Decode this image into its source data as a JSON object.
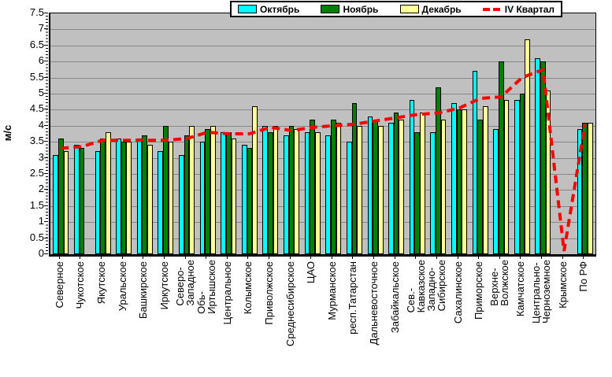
{
  "chart": {
    "legend": {
      "items": [
        {
          "label": "Октябрь",
          "color": "#00ffff",
          "swatch": "box"
        },
        {
          "label": "Ноябрь",
          "color": "#008000",
          "swatch": "box"
        },
        {
          "label": "Декабрь",
          "color": "#ffff99",
          "swatch": "box"
        },
        {
          "label": "IV Квартал",
          "color": "#ff0000",
          "swatch": "dash"
        }
      ]
    },
    "y_axis": {
      "title": "м/с"
    },
    "chart_data": {
      "type": "bar",
      "title": "",
      "xlabel": "",
      "ylabel": "м/с",
      "ylim": [
        0,
        7.5
      ],
      "ytick_step": 0.5,
      "ytick_labels": [
        "0",
        "0.5",
        "1",
        "1.5",
        "2",
        "2.5",
        "3",
        "3.5",
        "4",
        "4.5",
        "5",
        "5.5",
        "6",
        "6.5",
        "7",
        "7.5"
      ],
      "grid": true,
      "plot_background": "#c0c0c0",
      "gridline_color": "#878787",
      "legend_position": "top-center",
      "categories": [
        "Северное",
        "Чукотское",
        "Якутское",
        "Уральское",
        "Башкирское",
        "Иркутское",
        "Северо-\nЗападное",
        "Обь-\nИртышское",
        "Центральное",
        "Колымское",
        "Приволжское",
        "Среднесибирское",
        "ЦАО",
        "Мурманское",
        "респ.Татарстан",
        "Дальневосточное",
        "Забайкальское",
        "Сев.-\nКавказское",
        "Западно-\nСибирское",
        "Сахалинское",
        "Приморское",
        "Верхне-\nВолжское",
        "Камчатское",
        "Центрально-\nЧерноземное",
        "Крымское",
        "По РФ"
      ],
      "series": [
        {
          "name": "Октябрь",
          "type": "bar",
          "color": "#00ffff",
          "values": [
            3.1,
            3.4,
            3.2,
            3.6,
            3.6,
            3.2,
            3.1,
            3.5,
            3.8,
            3.4,
            4.0,
            3.7,
            3.8,
            3.7,
            3.5,
            4.3,
            4.1,
            4.8,
            3.8,
            4.7,
            5.7,
            3.9,
            4.8,
            6.1,
            null,
            3.9
          ]
        },
        {
          "name": "Ноябрь",
          "type": "bar",
          "color": "#008000",
          "values": [
            3.6,
            3.3,
            3.6,
            3.5,
            3.7,
            4.0,
            3.7,
            3.9,
            3.8,
            3.3,
            3.8,
            4.0,
            4.2,
            4.2,
            4.7,
            4.2,
            4.4,
            3.8,
            5.2,
            4.5,
            4.2,
            6.0,
            5.0,
            6.0,
            null,
            4.1
          ]
        },
        {
          "name": "Декабрь",
          "type": "bar",
          "color": "#ffff99",
          "values": [
            3.2,
            null,
            3.8,
            3.5,
            3.4,
            3.5,
            4.0,
            4.0,
            3.6,
            4.6,
            4.0,
            3.9,
            3.8,
            4.1,
            4.0,
            4.0,
            4.2,
            4.4,
            4.2,
            4.5,
            4.6,
            4.8,
            6.7,
            5.1,
            null,
            4.1
          ]
        },
        {
          "name": "IV Квартал",
          "type": "line",
          "style": "dashed",
          "color": "#ff0000",
          "values": [
            3.3,
            3.35,
            3.55,
            3.55,
            3.55,
            3.55,
            3.6,
            3.8,
            3.75,
            3.75,
            3.95,
            3.85,
            3.95,
            4.0,
            4.05,
            4.15,
            4.25,
            4.35,
            4.4,
            4.55,
            4.85,
            4.9,
            5.5,
            5.75,
            0.1,
            4.05
          ]
        }
      ]
    }
  }
}
